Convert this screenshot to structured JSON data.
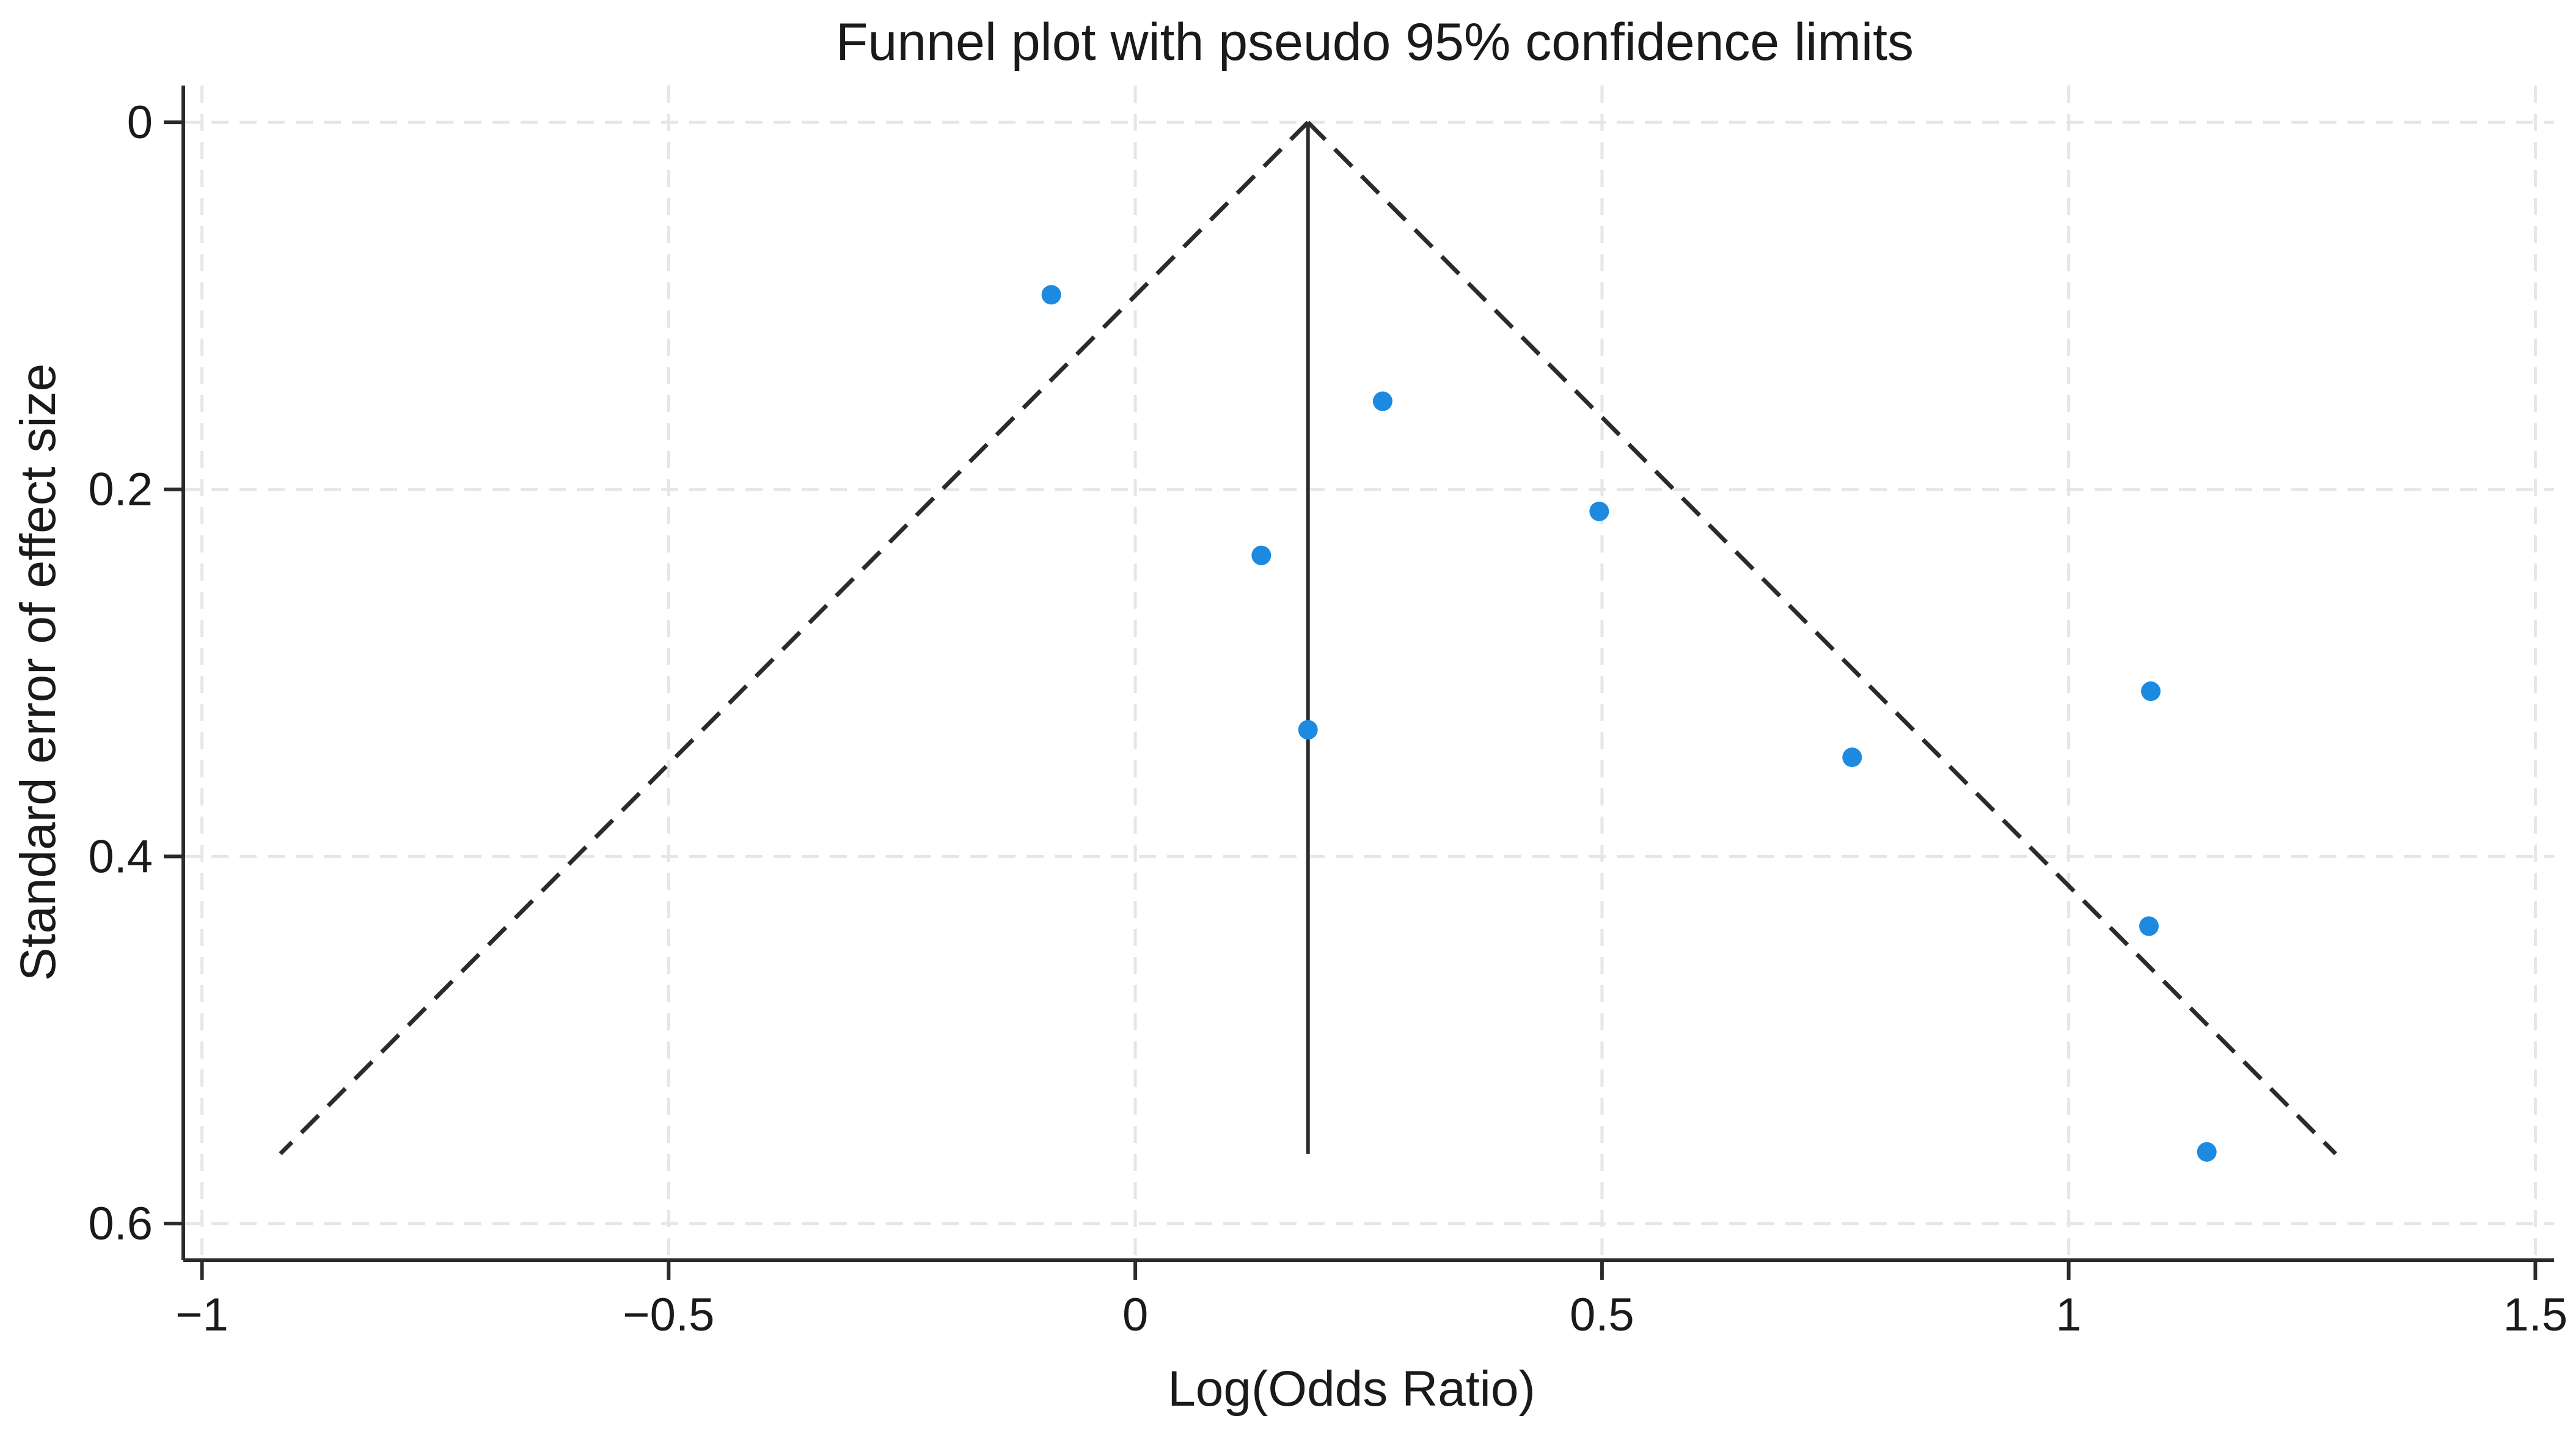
{
  "chart_data": {
    "type": "scatter",
    "title": "Funnel plot with pseudo 95% confidence limits",
    "xlabel": "Log(Odds Ratio)",
    "ylabel": "Standard error of effect size",
    "xlim": [
      -1.02,
      1.52
    ],
    "ylim": [
      0.62,
      -0.02
    ],
    "y_axis_reversed": true,
    "grid": true,
    "grid_style": "dashed",
    "x_ticks": [
      -1,
      -0.5,
      0,
      0.5,
      1,
      1.5
    ],
    "x_tick_labels": [
      "−1",
      "−0.5",
      "0",
      "0.5",
      "1",
      "1.5"
    ],
    "y_ticks": [
      0,
      0.2,
      0.4,
      0.6
    ],
    "y_tick_labels": [
      "0",
      "0.2",
      "0.4",
      "0.6"
    ],
    "pooled_estimate": 0.185,
    "se_max": 0.562,
    "confidence_limits": {
      "style": "dashed",
      "lower": [
        {
          "x": 0.185,
          "y": 0
        },
        {
          "x": -0.916,
          "y": 0.562
        }
      ],
      "upper": [
        {
          "x": 0.185,
          "y": 0
        },
        {
          "x": 1.286,
          "y": 0.562
        }
      ]
    },
    "points": [
      {
        "x": -0.09,
        "y": 0.094
      },
      {
        "x": 0.265,
        "y": 0.152
      },
      {
        "x": 0.135,
        "y": 0.236
      },
      {
        "x": 0.497,
        "y": 0.212
      },
      {
        "x": 0.185,
        "y": 0.331
      },
      {
        "x": 0.768,
        "y": 0.346
      },
      {
        "x": 1.088,
        "y": 0.31
      },
      {
        "x": 1.086,
        "y": 0.438
      },
      {
        "x": 1.148,
        "y": 0.561
      }
    ],
    "colors": {
      "points": "#1c8ae0",
      "lines": "#2b2b2b",
      "grid": "#e6e6e6",
      "axis": "#2b2b2b"
    }
  }
}
